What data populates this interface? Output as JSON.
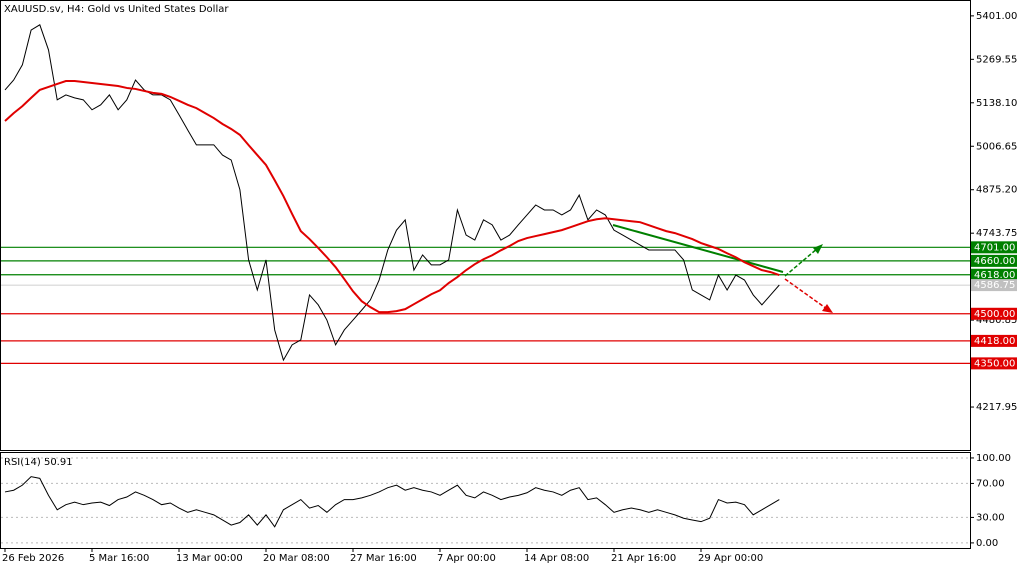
{
  "chart_data": [
    {
      "type": "line",
      "title": "XAUUSD.sv, H4:  Gold vs United States Dollar",
      "categories": [
        "26 Feb 2026",
        null,
        null,
        null,
        null,
        null,
        null,
        null,
        null,
        null,
        "5 Mar 16:00",
        null,
        null,
        null,
        null,
        null,
        null,
        null,
        null,
        null,
        "13 Mar 00:00",
        null,
        null,
        null,
        null,
        null,
        null,
        null,
        null,
        null,
        "20 Mar 08:00",
        null,
        null,
        null,
        null,
        null,
        null,
        null,
        null,
        null,
        "27 Mar 16:00",
        null,
        null,
        null,
        null,
        null,
        null,
        null,
        null,
        null,
        "7 Apr 00:00",
        null,
        null,
        null,
        null,
        null,
        null,
        null,
        null,
        null,
        "14 Apr 08:00",
        null,
        null,
        null,
        null,
        null,
        null,
        null,
        null,
        null,
        "21 Apr 16:00",
        null,
        null,
        null,
        null,
        null,
        null,
        null,
        null,
        null,
        "29 Apr 00:00",
        null,
        null,
        null,
        null,
        null,
        null,
        null,
        null,
        null
      ],
      "series": [
        {
          "color": "#000000",
          "values": [
            5177,
            5207,
            5253,
            5358,
            5374,
            5298,
            5147,
            5162,
            5153,
            5147,
            5117,
            5132,
            5162,
            5117,
            5147,
            5207,
            5177,
            5162,
            5162,
            5147,
            5102,
            5056,
            5011,
            5011,
            5011,
            4980,
            4965,
            4875,
            4663,
            4572,
            4663,
            4451,
            4360,
            4406,
            4421,
            4557,
            4527,
            4481,
            4406,
            4451,
            4481,
            4511,
            4542,
            4602,
            4693,
            4753,
            4784,
            4632,
            4678,
            4648,
            4648,
            4663,
            4814,
            4738,
            4723,
            4784,
            4769,
            4723,
            4738,
            4769,
            4799,
            4829,
            4814,
            4814,
            4799,
            4814,
            4859,
            4784,
            4814,
            4799,
            4753,
            4738,
            4723,
            4708,
            4693,
            4693,
            4693,
            4693,
            4663,
            4572,
            4557,
            4542,
            4617,
            4572,
            4617,
            4602,
            4557,
            4527,
            4557,
            4587
          ]
        },
        {
          "color": "#e00000",
          "values": [
            5083,
            5107,
            5128,
            5153,
            5177,
            5186,
            5195,
            5204,
            5204,
            5201,
            5198,
            5195,
            5192,
            5189,
            5183,
            5180,
            5174,
            5168,
            5165,
            5156,
            5144,
            5132,
            5122,
            5107,
            5092,
            5074,
            5059,
            5041,
            5010,
            4980,
            4950,
            4904,
            4856,
            4802,
            4750,
            4726,
            4699,
            4671,
            4641,
            4605,
            4568,
            4538,
            4520,
            4505,
            4505,
            4508,
            4514,
            4529,
            4544,
            4559,
            4571,
            4593,
            4611,
            4632,
            4650,
            4665,
            4677,
            4692,
            4705,
            4720,
            4729,
            4735,
            4741,
            4747,
            4753,
            4762,
            4771,
            4780,
            4786,
            4789,
            4786,
            4783,
            4780,
            4777,
            4768,
            4759,
            4750,
            4744,
            4735,
            4726,
            4714,
            4705,
            4696,
            4683,
            4671,
            4656,
            4644,
            4632,
            4626,
            4617
          ]
        }
      ],
      "ylim": [
        4088,
        5449
      ],
      "yticks": [
        {
          "value": 5401,
          "label": "5401.00"
        },
        {
          "value": 5269.55,
          "label": "5269.55"
        },
        {
          "value": 5138.1,
          "label": "5138.10"
        },
        {
          "value": 5006.65,
          "label": "5006.65"
        },
        {
          "value": 4875.2,
          "label": "4875.20"
        },
        {
          "value": 4743.75,
          "label": "4743.75"
        },
        {
          "value": 4480.85,
          "label": "4480.85"
        },
        {
          "value": 4217.95,
          "label": "4217.95"
        }
      ],
      "levels": [
        {
          "value": 4701,
          "label": "4701.00",
          "color": "#008000"
        },
        {
          "value": 4660,
          "label": "4660.00",
          "color": "#008000"
        },
        {
          "value": 4618,
          "label": "4618.00",
          "color": "#008000"
        },
        {
          "value": 4500,
          "label": "4500.00",
          "color": "#e00000"
        },
        {
          "value": 4418,
          "label": "4418.00",
          "color": "#e00000"
        },
        {
          "value": 4350,
          "label": "4350.00",
          "color": "#e00000"
        }
      ],
      "last_price": {
        "value": 4586.75,
        "label": "4586.75",
        "color": "#c0c0c0"
      }
    },
    {
      "type": "line",
      "title": "RSI(14) 50.91",
      "series": [
        {
          "color": "#000000",
          "values": [
            60,
            62,
            68,
            78,
            76,
            56,
            39,
            45,
            48,
            45,
            47,
            48,
            44,
            51,
            54,
            60,
            56,
            51,
            45,
            47,
            41,
            36,
            39,
            36,
            33,
            27,
            21,
            24,
            33,
            21,
            33,
            19,
            39,
            45,
            51,
            41,
            44,
            36,
            45,
            51,
            51,
            53,
            56,
            60,
            65,
            68,
            62,
            65,
            62,
            60,
            56,
            62,
            68,
            56,
            53,
            60,
            56,
            51,
            54,
            56,
            59,
            65,
            62,
            60,
            56,
            62,
            65,
            51,
            53,
            45,
            36,
            39,
            41,
            39,
            36,
            39,
            36,
            33,
            29,
            27,
            25,
            29,
            51,
            47,
            48,
            45,
            33,
            39,
            45,
            51
          ]
        }
      ],
      "ylim": [
        -6,
        107
      ],
      "yticks": [
        {
          "value": 100,
          "label": "100.00"
        },
        {
          "value": 70,
          "label": "70.00"
        },
        {
          "value": 30,
          "label": "30.00"
        },
        {
          "value": 0,
          "label": "0.00"
        }
      ],
      "grid": true
    }
  ]
}
